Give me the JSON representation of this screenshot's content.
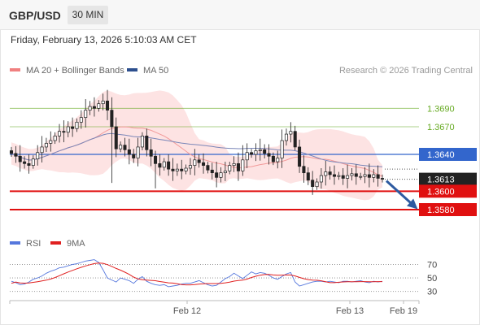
{
  "header": {
    "symbol": "GBP/USD",
    "timeframe": "30 MIN"
  },
  "datetime": "Friday, February 13, 2026 5:10:03 AM CET",
  "credit": "Research © 2026 Trading Central",
  "legend": [
    {
      "label": "MA 20 + Bollinger Bands",
      "color": "#f08080"
    },
    {
      "label": "MA 50",
      "color": "#2d4f8e"
    }
  ],
  "rsi_legend": [
    {
      "label": "RSI",
      "color": "#5577dd"
    },
    {
      "label": "9MA",
      "color": "#e02020"
    }
  ],
  "colors": {
    "resistance": "#66aa22",
    "pivot": "#3366cc",
    "support": "#e01010",
    "price": "#222222",
    "band_fill": "#fde3e3",
    "ma20": "#f29a9a",
    "ma50": "#7a86b8",
    "arrow": "#2d5aa0",
    "candle_up": "#ffffff",
    "candle_down": "#222222"
  },
  "chart_data": [
    {
      "type": "candlestick",
      "title": "GBP/USD 30 MIN",
      "ylim": [
        1.3565,
        1.3715
      ],
      "x_ticks": [
        "Feb 12",
        "Feb 13",
        "Feb 19"
      ],
      "levels": [
        {
          "value": 1.369,
          "label": "1.3690",
          "kind": "resistance"
        },
        {
          "value": 1.367,
          "label": "1.3670",
          "kind": "resistance"
        },
        {
          "value": 1.364,
          "label": "1.3640",
          "kind": "pivot"
        },
        {
          "value": 1.3613,
          "label": "1.3613",
          "kind": "price"
        },
        {
          "value": 1.36,
          "label": "1.3600",
          "kind": "support"
        },
        {
          "value": 1.358,
          "label": "1.3580",
          "kind": "support"
        }
      ],
      "closes": [
        1.3641,
        1.3638,
        1.3632,
        1.363,
        1.3628,
        1.3635,
        1.3642,
        1.3648,
        1.3652,
        1.3655,
        1.366,
        1.3665,
        1.3664,
        1.367,
        1.3668,
        1.3675,
        1.368,
        1.3688,
        1.3692,
        1.369,
        1.3695,
        1.3698,
        1.3688,
        1.367,
        1.3646,
        1.365,
        1.3645,
        1.364,
        1.3636,
        1.3648,
        1.366,
        1.3645,
        1.3638,
        1.363,
        1.3626,
        1.3632,
        1.3624,
        1.3622,
        1.3624,
        1.3622,
        1.3625,
        1.3628,
        1.3634,
        1.3631,
        1.3628,
        1.3623,
        1.362,
        1.3615,
        1.362,
        1.3622,
        1.3628,
        1.363,
        1.3622,
        1.3634,
        1.3642,
        1.364,
        1.3644,
        1.3645,
        1.3641,
        1.3638,
        1.3632,
        1.3636,
        1.3655,
        1.3662,
        1.3665,
        1.3648,
        1.3627,
        1.362,
        1.3612,
        1.3605,
        1.361,
        1.3617,
        1.3621,
        1.3618,
        1.3616,
        1.3617,
        1.3614,
        1.3617,
        1.3619,
        1.3616,
        1.3616,
        1.3618,
        1.3615,
        1.3618,
        1.3614,
        1.3613
      ],
      "ma20_start": 1.3642,
      "rsi": {
        "ticks": [
          70,
          50,
          30
        ],
        "ylim": [
          20,
          85
        ],
        "values": [
          45,
          43,
          40,
          41,
          44,
          48,
          50,
          53,
          57,
          60,
          62,
          65,
          66,
          68,
          70,
          71,
          73,
          75,
          76,
          77,
          73,
          62,
          50,
          47,
          44,
          50,
          48,
          46,
          42,
          48,
          52,
          45,
          42,
          40,
          39,
          40,
          37,
          38,
          39,
          41,
          42,
          42,
          44,
          46,
          43,
          40,
          38,
          39,
          44,
          49,
          52,
          57,
          53,
          49,
          54,
          59,
          56,
          58,
          57,
          54,
          50,
          48,
          52,
          56,
          58,
          44,
          38,
          40,
          42,
          44,
          45,
          45,
          44,
          45,
          44,
          43,
          45,
          45,
          44,
          45,
          46,
          44,
          43,
          45,
          44,
          45
        ],
        "ma9_start": 42
      }
    }
  ]
}
